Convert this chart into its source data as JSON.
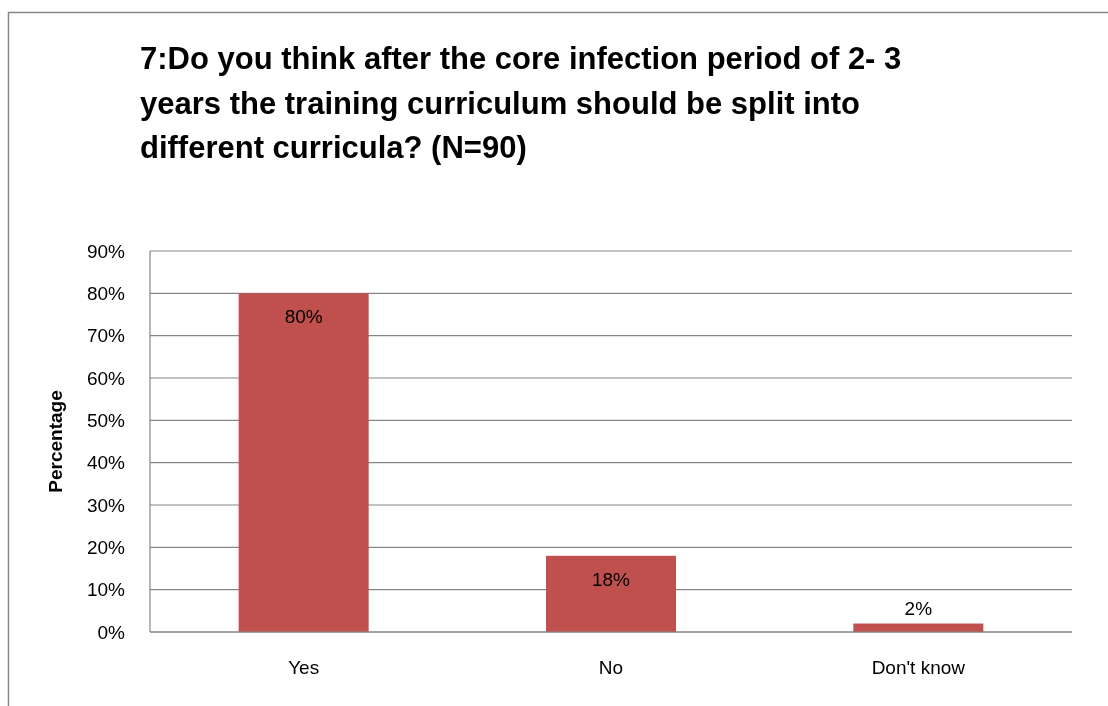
{
  "chart_data": {
    "type": "bar",
    "title": "7:Do you think after the core infection period of 2- 3 years the training curriculum should be split into different curricula? (N=90)",
    "ylabel": "Percentage",
    "categories": [
      "Yes",
      "No",
      "Don't know"
    ],
    "values": [
      80,
      18,
      2
    ],
    "color": "#c0504d",
    "value_labels": [
      "80%",
      "18%",
      "2%"
    ],
    "ylim": [
      0,
      90
    ],
    "yticks": [
      {
        "value": 0,
        "label": "0%"
      },
      {
        "value": 10,
        "label": "10%"
      },
      {
        "value": 20,
        "label": "20%"
      },
      {
        "value": 30,
        "label": "30%"
      },
      {
        "value": 40,
        "label": "40%"
      },
      {
        "value": 50,
        "label": "50%"
      },
      {
        "value": 60,
        "label": "60%"
      },
      {
        "value": 70,
        "label": "70%"
      },
      {
        "value": 80,
        "label": "80%"
      },
      {
        "value": 90,
        "label": "90%"
      }
    ],
    "grid": "y"
  }
}
